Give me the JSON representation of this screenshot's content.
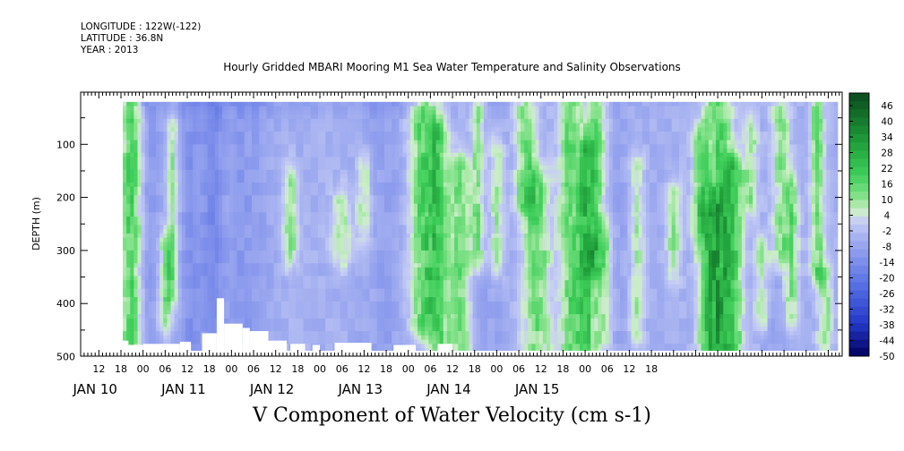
{
  "header": {
    "longitude": "LONGITUDE : 122W(-122)",
    "latitude": "LATITUDE : 36.8N",
    "year": "YEAR : 2013"
  },
  "chart_data": {
    "type": "heatmap",
    "title": "Hourly Gridded MBARI Mooring M1 Sea Water Temperature and Salinity Observations",
    "xlabel": "V Component of Water Velocity (cm s-1)",
    "ylabel": "DEPTH (m)",
    "ylim": [
      500,
      0
    ],
    "y_ticks": [
      "100",
      "200",
      "300",
      "400",
      "500"
    ],
    "x_hour_ticks": [
      "12",
      "18",
      "00",
      "06",
      "12",
      "18",
      "00",
      "06",
      "12",
      "18",
      "00",
      "06",
      "12",
      "18",
      "00",
      "06",
      "12",
      "18",
      "00",
      "06",
      "12",
      "18",
      "00",
      "06",
      "12",
      "18"
    ],
    "x_day_ticks": [
      "JAN 10",
      "JAN 11",
      "JAN 12",
      "JAN 13",
      "JAN 14",
      "JAN 15"
    ],
    "colorbar_levels": [
      "46",
      "40",
      "34",
      "28",
      "22",
      "16",
      "10",
      "4",
      "-2",
      "-8",
      "-14",
      "-20",
      "-26",
      "-32",
      "-38",
      "-44",
      "-50"
    ],
    "colors": {
      "strong_positive": "#0a4a1c",
      "positive": "#3fcf5a",
      "weak_positive": "#b6f0b3",
      "weak_negative": "#bcc6f3",
      "negative": "#8a9cea",
      "strong_negative": "#2a3ed2",
      "very_negative": "#000070"
    },
    "notes": "Filled contour field of V velocity vs time (Jan 10 06h to Jan 15 23h, 2013) and depth (~20-490 m); mostly weak negative values with vertical bands of positive (green) flow near Jan 10 21h, Jan 13 06h, Jan 14 06-12h and Jan 15 06-12h."
  }
}
